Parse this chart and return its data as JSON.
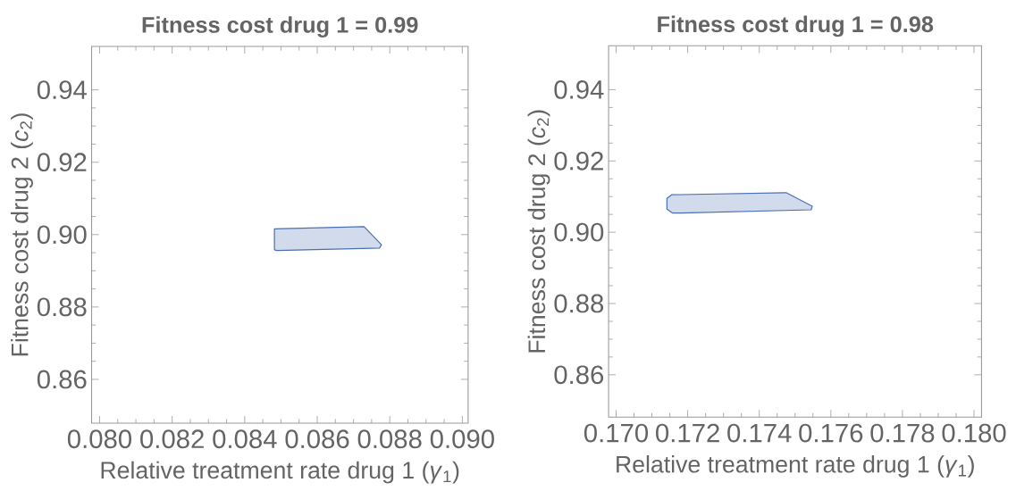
{
  "chart_data": [
    {
      "type": "area",
      "title": "Fitness cost drug 1 = 0.99",
      "xlabel": "Relative treatment rate drug 1  (*γ*$_{1}$)",
      "ylabel": "Fitness cost drug 2 (*c*$_{2}$)",
      "xlim": [
        0.07978,
        0.09016
      ],
      "ylim": [
        0.8479,
        0.952
      ],
      "xticks": [
        {
          "value": 0.08,
          "label": "0.080"
        },
        {
          "value": 0.082,
          "label": "0.082"
        },
        {
          "value": 0.084,
          "label": "0.084"
        },
        {
          "value": 0.086,
          "label": "0.086"
        },
        {
          "value": 0.088,
          "label": "0.088"
        },
        {
          "value": 0.09,
          "label": "0.090"
        }
      ],
      "yticks": [
        {
          "value": 0.86,
          "label": "0.86"
        },
        {
          "value": 0.88,
          "label": "0.88"
        },
        {
          "value": 0.9,
          "label": "0.90"
        },
        {
          "value": 0.92,
          "label": "0.92"
        },
        {
          "value": 0.94,
          "label": "0.94"
        }
      ],
      "series": [
        {
          "color": "#4a6fb5",
          "x": [
            0.08482,
            0.08729,
            0.08777,
            0.08772,
            0.08489,
            0.08482
          ],
          "values": [
            0.9016,
            0.9022,
            0.8972,
            0.8963,
            0.8956,
            0.8958
          ]
        }
      ]
    },
    {
      "type": "area",
      "title": "Fitness cost drug 1 = 0.98",
      "xlabel": "Relative treatment rate drug 1  (*γ*$_{1}$)",
      "ylabel": "Fitness cost drug 2 (*c*$_{2}$)",
      "xlim": [
        0.16979,
        0.18021
      ],
      "ylim": [
        0.8481,
        0.9523
      ],
      "xticks": [
        {
          "value": 0.17,
          "label": "0.170"
        },
        {
          "value": 0.172,
          "label": "0.172"
        },
        {
          "value": 0.174,
          "label": "0.174"
        },
        {
          "value": 0.176,
          "label": "0.176"
        },
        {
          "value": 0.178,
          "label": "0.178"
        },
        {
          "value": 0.18,
          "label": "0.180"
        }
      ],
      "yticks": [
        {
          "value": 0.86,
          "label": "0.86"
        },
        {
          "value": 0.88,
          "label": "0.88"
        },
        {
          "value": 0.9,
          "label": "0.90"
        },
        {
          "value": 0.92,
          "label": "0.92"
        },
        {
          "value": 0.94,
          "label": "0.94"
        }
      ],
      "series": [
        {
          "color": "#4a6fb5",
          "x": [
            0.17142,
            0.17155,
            0.17475,
            0.17548,
            0.17545,
            0.17182,
            0.17157,
            0.17142
          ],
          "values": [
            0.9095,
            0.9105,
            0.9111,
            0.9073,
            0.9063,
            0.9054,
            0.9054,
            0.9065
          ]
        }
      ]
    }
  ]
}
